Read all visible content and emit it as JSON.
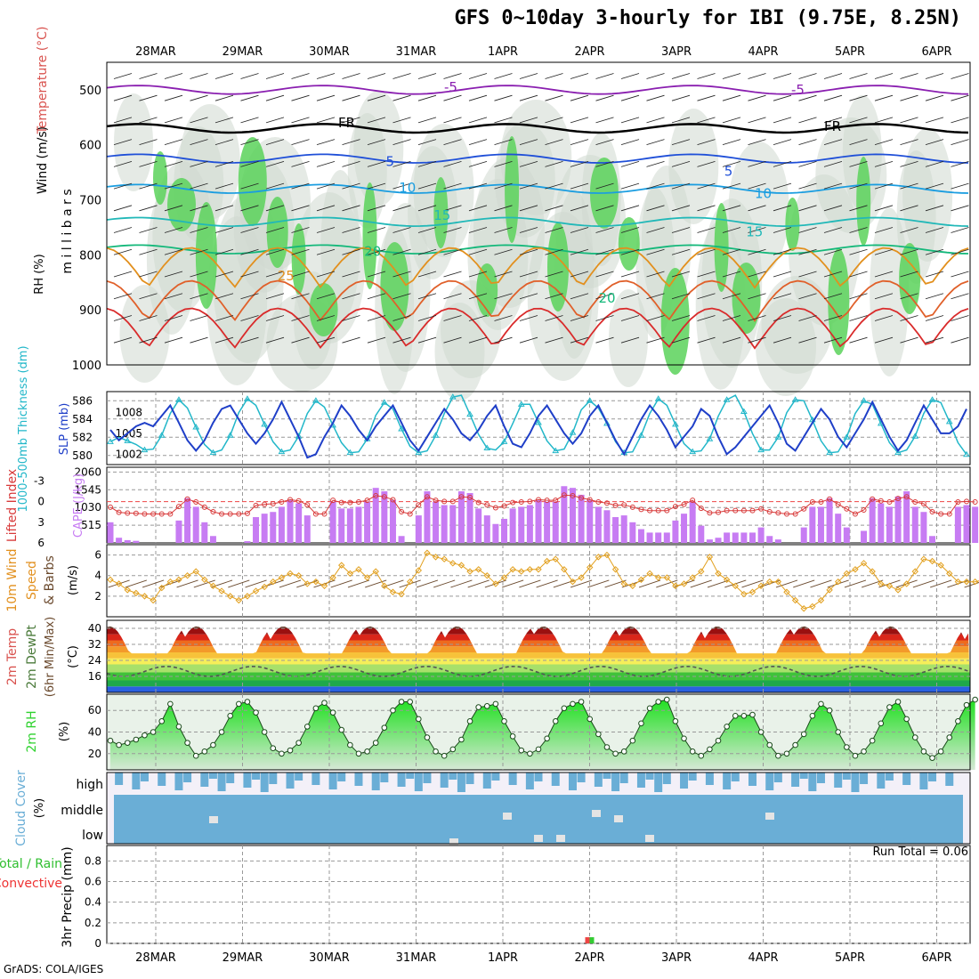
{
  "title": "GFS 0~10day 3-hourly for IBI (9.75E, 8.25N)",
  "credit": "GrADS: COLA/IGES",
  "run_total": "Run Total = 0.06",
  "dates": [
    "28MAR",
    "29MAR",
    "30MAR",
    "31MAR",
    "1APR",
    "2APR",
    "3APR",
    "4APR",
    "5APR",
    "6APR"
  ],
  "colors": {
    "rh_green": "#5ad25a",
    "rh_light": "#e6f2e6",
    "thick": "#22b7c9",
    "slp": "#1f3fc8",
    "li": "#d83a3a",
    "cape": "#c77cf3",
    "wind": "#e2a01e",
    "rh2m": "#2fd22f",
    "cloud": "#6aaed6"
  },
  "chart_data": [
    {
      "type": "heatmap",
      "name": "upper-air",
      "ylabel_parts": [
        "Wind (m/s)",
        "Temperature (°C)",
        "RH (%)"
      ],
      "yunits": "m i l l i b a r s",
      "ylim": [
        1000,
        450
      ],
      "y_ticks": [
        "500",
        "600",
        "700",
        "800",
        "900",
        "1000"
      ],
      "y_tick_values": [
        500,
        600,
        700,
        800,
        900,
        1000
      ],
      "contour_labels": [
        {
          "text": "-5",
          "day": 3.4,
          "p": 497,
          "color": "#8a1fb0"
        },
        {
          "text": "-5",
          "day": 7.4,
          "p": 502,
          "color": "#8a1fb0"
        },
        {
          "text": "FR",
          "day": 2.2,
          "p": 562,
          "color": "#000000"
        },
        {
          "text": "FR",
          "day": 7.8,
          "p": 568,
          "color": "#000000"
        },
        {
          "text": "5",
          "day": 2.7,
          "p": 632,
          "color": "#1f4fd8"
        },
        {
          "text": "5",
          "day": 6.6,
          "p": 650,
          "color": "#1f4fd8"
        },
        {
          "text": "10",
          "day": 2.9,
          "p": 680,
          "color": "#1a9de0"
        },
        {
          "text": "10",
          "day": 7.0,
          "p": 690,
          "color": "#1a9de0"
        },
        {
          "text": "15",
          "day": 3.3,
          "p": 730,
          "color": "#21b8b8"
        },
        {
          "text": "15",
          "day": 6.9,
          "p": 760,
          "color": "#21b8b8"
        },
        {
          "text": "20",
          "day": 2.5,
          "p": 795,
          "color": "#14b87a"
        },
        {
          "text": "20",
          "day": 5.2,
          "p": 880,
          "color": "#14b87a"
        },
        {
          "text": "25",
          "day": 1.5,
          "p": 840,
          "color": "#e2901e"
        }
      ],
      "isotherms_c": [
        -5,
        0,
        5,
        10,
        15,
        20,
        25,
        30,
        35
      ]
    },
    {
      "type": "line",
      "name": "thickness-slp",
      "ylabel_left": "1000-500mb Thickness (dm)",
      "ylabel_right": "SLP (mb)",
      "left_ticks": [
        580,
        582,
        584,
        586
      ],
      "right_ticks": [
        1002,
        1005,
        1008
      ],
      "series": [
        {
          "name": "Thickness",
          "unit": "dm",
          "values": [
            581.5,
            582.0,
            581.6,
            581.2,
            580.6,
            580.7,
            582.2,
            584.6,
            586.1,
            585.2,
            583.1,
            581.2,
            580.3,
            580.6,
            582.2,
            584.7,
            586.2,
            585.5,
            583.4,
            581.5,
            580.4,
            580.6,
            582.1,
            584.6,
            586.0,
            585.3,
            583.3,
            581.4,
            580.3,
            580.4,
            581.8,
            584.4,
            585.8,
            585.1,
            582.9,
            581.0,
            580.3,
            580.5,
            582.2,
            584.6,
            586.4,
            586.6,
            584.5,
            582.3,
            580.8,
            580.6,
            581.5,
            583.5,
            585.6,
            585.6,
            583.6,
            581.6,
            580.5,
            580.7,
            582.5,
            585.0,
            586.0,
            585.2,
            583.5,
            581.5,
            580.3,
            580.4,
            582.2,
            584.6,
            586.2,
            585.5,
            583.4,
            581.3,
            580.4,
            580.5,
            581.8,
            584.3,
            586.1,
            586.6,
            584.8,
            582.4,
            580.6,
            580.6,
            582.0,
            584.7,
            586.1,
            586.0,
            583.9,
            581.6,
            580.3,
            580.4,
            582.0,
            584.6,
            586.0,
            585.6,
            583.5,
            581.4,
            580.3,
            580.6,
            582.1,
            584.6,
            586.1,
            585.8,
            583.7,
            581.4,
            580.1
          ]
        },
        {
          "name": "SLP",
          "unit": "mb",
          "values": [
            1005.5,
            1004.0,
            1005.0,
            1006.0,
            1006.5,
            1006.0,
            1007.5,
            1009.0,
            1006.5,
            1004.0,
            1002.5,
            1004.0,
            1006.5,
            1008.5,
            1009.0,
            1007.0,
            1005.0,
            1003.5,
            1005.0,
            1007.0,
            1009.5,
            1007.0,
            1004.5,
            1001.5,
            1002.0,
            1004.5,
            1006.5,
            1009.0,
            1007.5,
            1005.5,
            1004.0,
            1006.0,
            1007.5,
            1009.0,
            1006.5,
            1004.0,
            1002.5,
            1004.5,
            1006.5,
            1008.5,
            1007.0,
            1005.0,
            1004.0,
            1005.5,
            1007.5,
            1009.0,
            1006.0,
            1003.5,
            1003.0,
            1005.0,
            1007.5,
            1009.0,
            1007.0,
            1005.0,
            1003.5,
            1005.0,
            1007.5,
            1009.0,
            1006.5,
            1004.0,
            1002.0,
            1004.5,
            1007.0,
            1009.0,
            1007.5,
            1005.5,
            1003.0,
            1004.5,
            1006.0,
            1008.5,
            1007.5,
            1004.5,
            1002.0,
            1003.0,
            1004.5,
            1006.0,
            1007.5,
            1009.0,
            1006.5,
            1003.5,
            1002.5,
            1004.5,
            1006.5,
            1008.5,
            1007.0,
            1004.5,
            1003.0,
            1005.0,
            1007.0,
            1009.5,
            1007.0,
            1004.5,
            1002.5,
            1004.0,
            1006.5,
            1009.0,
            1007.0,
            1005.0,
            1005.0,
            1006.0,
            1008.5
          ]
        }
      ]
    },
    {
      "type": "bar",
      "name": "li-cape",
      "ylabel_left": "Lifted Index",
      "ylabel_right": "CAPE (J/kg)",
      "left_ticks": [
        "-3",
        "0",
        "3",
        "6"
      ],
      "right_ticks": [
        "515",
        "1030",
        "1545",
        "2060"
      ],
      "li_ticks_values": [
        -3,
        0,
        3,
        6
      ],
      "cape_values": [
        600,
        150,
        80,
        60,
        0,
        0,
        0,
        0,
        650,
        1300,
        1050,
        600,
        200,
        0,
        0,
        0,
        50,
        750,
        850,
        900,
        1050,
        1250,
        1150,
        800,
        0,
        0,
        1200,
        1000,
        1000,
        1050,
        1200,
        1600,
        1500,
        1250,
        200,
        0,
        800,
        1500,
        1200,
        1100,
        1100,
        1500,
        1450,
        1000,
        800,
        550,
        700,
        1000,
        1050,
        1100,
        1250,
        1200,
        1200,
        1650,
        1600,
        1400,
        1250,
        1050,
        950,
        750,
        800,
        600,
        400,
        300,
        300,
        300,
        650,
        850,
        1200,
        500,
        100,
        150,
        300,
        300,
        300,
        300,
        450,
        200,
        100,
        0,
        0,
        450,
        1050,
        1050,
        1300,
        850,
        450,
        0,
        350,
        1300,
        1150,
        1050,
        1350,
        1500,
        1050,
        900,
        200,
        0,
        0,
        1050,
        1100,
        1050
      ]
    },
    {
      "type": "line",
      "name": "wind10m",
      "ylabel_parts": [
        "10m Wind",
        "Speed",
        "& Barbs"
      ],
      "yunits": "(m/s)",
      "y_ticks": [
        "2",
        "4",
        "6"
      ],
      "values": [
        3.6,
        3.2,
        2.6,
        2.3,
        2.0,
        1.6,
        2.8,
        3.4,
        3.6,
        4.0,
        4.4,
        3.6,
        3.0,
        2.5,
        2.0,
        1.6,
        2.0,
        2.5,
        2.9,
        3.4,
        3.8,
        4.2,
        4.0,
        3.2,
        3.4,
        3.0,
        3.8,
        5.0,
        4.2,
        4.6,
        3.8,
        4.4,
        3.0,
        2.4,
        2.2,
        3.4,
        4.5,
        6.2,
        5.8,
        5.6,
        5.2,
        5.0,
        4.4,
        4.6,
        4.0,
        3.2,
        3.8,
        4.6,
        4.4,
        4.6,
        4.6,
        5.4,
        5.6,
        4.6,
        3.4,
        3.8,
        4.8,
        5.8,
        6.0,
        4.6,
        3.2,
        3.0,
        3.6,
        4.2,
        3.8,
        3.8,
        3.0,
        3.2,
        3.8,
        4.4,
        5.8,
        4.2,
        3.6,
        3.0,
        2.2,
        2.4,
        3.0,
        3.4,
        3.4,
        2.4,
        1.6,
        0.8,
        1.0,
        1.6,
        2.6,
        3.4,
        4.2,
        4.6,
        5.2,
        4.4,
        3.2,
        3.0,
        2.6,
        3.2,
        4.4,
        5.6,
        5.4,
        5.0,
        4.2,
        3.4,
        3.4,
        3.4,
        3.6,
        6.2,
        5.2,
        4.4
      ]
    },
    {
      "type": "area",
      "name": "temp2m",
      "ylabel_parts": [
        "2m Temp",
        "2m DewPt",
        "(6hr Min/Max)"
      ],
      "yunits": "(°C)",
      "y_ticks": [
        "16",
        "24",
        "32",
        "40"
      ],
      "y_tick_values": [
        16,
        24,
        32,
        40
      ],
      "temp_max_c": 40,
      "temp_min_c": 27.5,
      "dewpoint_c": [
        16,
        21
      ]
    },
    {
      "type": "area",
      "name": "rh2m",
      "ylabel": "2m RH",
      "yunits": "(%)",
      "y_ticks": [
        "20",
        "40",
        "60"
      ],
      "y_tick_values": [
        20,
        40,
        60
      ],
      "values": [
        32,
        28,
        30,
        33,
        37,
        40,
        50,
        66,
        45,
        30,
        18,
        22,
        28,
        40,
        55,
        66,
        68,
        58,
        40,
        25,
        20,
        23,
        30,
        45,
        62,
        67,
        58,
        42,
        28,
        20,
        22,
        30,
        44,
        60,
        68,
        68,
        52,
        35,
        22,
        18,
        24,
        33,
        50,
        63,
        64,
        66,
        50,
        36,
        23,
        20,
        24,
        34,
        50,
        62,
        66,
        68,
        52,
        38,
        26,
        20,
        22,
        32,
        48,
        62,
        68,
        70,
        50,
        34,
        22,
        18,
        24,
        32,
        45,
        55,
        55,
        56,
        40,
        28,
        18,
        20,
        28,
        38,
        55,
        66,
        60,
        40,
        26,
        18,
        22,
        32,
        48,
        63,
        68,
        52,
        35,
        22,
        16,
        22,
        35,
        50,
        65,
        70
      ]
    },
    {
      "type": "bar",
      "name": "cloud-cover",
      "ylabel": "Cloud Cover",
      "yunits": "(%)",
      "levels": [
        "high",
        "middle",
        "low"
      ]
    },
    {
      "type": "bar",
      "name": "precip",
      "ylabel": "3hr Precip (mm)",
      "legend": [
        "Total / Rain",
        "Convective"
      ],
      "y_ticks": [
        "0",
        "0.2",
        "0.4",
        "0.6",
        "0.8"
      ],
      "y_tick_values": [
        0,
        0.2,
        0.4,
        0.6,
        0.8
      ],
      "ylim": [
        0,
        1.0
      ],
      "bars": [
        {
          "day": 5.0,
          "value": 0.06
        }
      ]
    }
  ]
}
